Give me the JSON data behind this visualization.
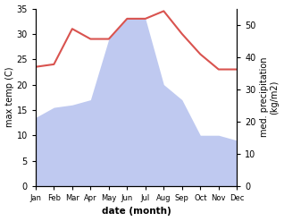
{
  "months": [
    "Jan",
    "Feb",
    "Mar",
    "Apr",
    "May",
    "Jun",
    "Jul",
    "Aug",
    "Sep",
    "Oct",
    "Nov",
    "Dec"
  ],
  "month_x": [
    1,
    2,
    3,
    4,
    5,
    6,
    7,
    8,
    9,
    10,
    11,
    12
  ],
  "temperature": [
    23.5,
    24.0,
    31.0,
    29.0,
    29.0,
    33.0,
    33.0,
    34.5,
    30.0,
    26.0,
    23.0,
    23.0
  ],
  "rainfall_left_scale": [
    13.5,
    15.5,
    16.0,
    17.0,
    29.0,
    33.0,
    33.0,
    20.0,
    17.0,
    10.0,
    10.0,
    9.0
  ],
  "temp_color": "#d9534f",
  "rain_color": "#b8c4ef",
  "temp_ylim": [
    0,
    35
  ],
  "rain_ylim": [
    0,
    35
  ],
  "right_ylim": [
    0,
    55
  ],
  "temp_yticks": [
    0,
    5,
    10,
    15,
    20,
    25,
    30,
    35
  ],
  "right_yticks": [
    0,
    10,
    20,
    30,
    40,
    50
  ],
  "right_yticklabels": [
    "0",
    "10",
    "20",
    "30",
    "40",
    "50"
  ],
  "xlabel": "date (month)",
  "ylabel_left": "max temp (C)",
  "ylabel_right": "med. precipitation\n(kg/m2)",
  "background_color": "#ffffff"
}
